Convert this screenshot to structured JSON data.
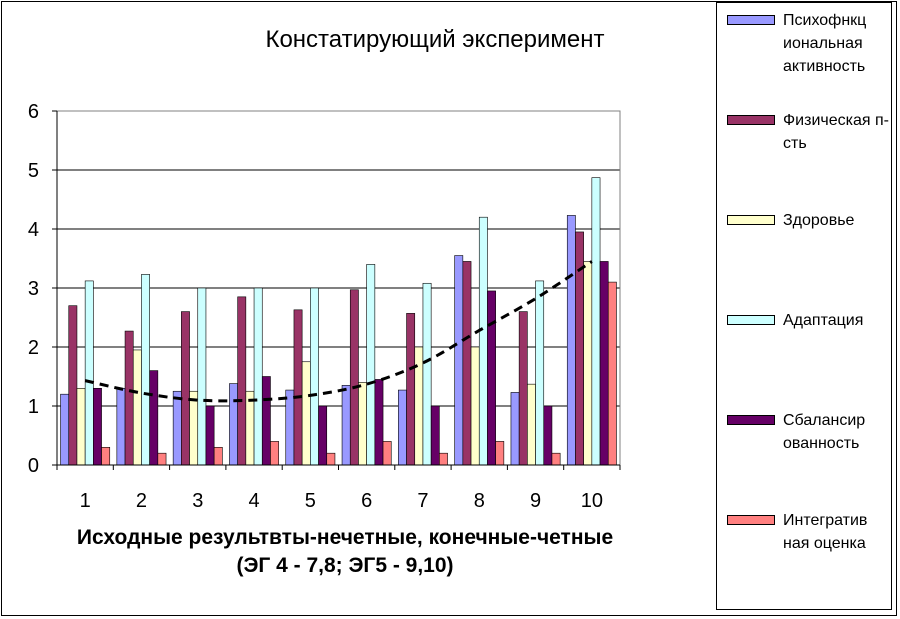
{
  "chart_data": {
    "type": "bar",
    "title": "Констатирующий эксперимент",
    "xlabel_line1": "Исходные результвты-нечетные,  конечные-четные",
    "xlabel_line2": "(ЭГ 4 - 7,8;  ЭГ5 - 9,10)",
    "ylabel": "",
    "ylim": [
      0,
      6
    ],
    "yticks": [
      "0",
      "1",
      "2",
      "3",
      "4",
      "5",
      "6"
    ],
    "categories": [
      "1",
      "2",
      "3",
      "4",
      "5",
      "6",
      "7",
      "8",
      "9",
      "10"
    ],
    "grid": true,
    "legend_position": "right",
    "series": [
      {
        "name": "Психофнкц иональная активность",
        "color": "#9999ff",
        "values": [
          1.2,
          1.3,
          1.25,
          1.38,
          1.27,
          1.35,
          1.27,
          3.55,
          1.23,
          4.23
        ]
      },
      {
        "name": "Физическая п-сть",
        "color": "#993366",
        "values": [
          2.7,
          2.27,
          2.6,
          2.85,
          2.63,
          2.97,
          2.57,
          3.45,
          2.6,
          3.95
        ]
      },
      {
        "name": "Здоровье",
        "color": "#ffffcc",
        "values": [
          1.3,
          1.95,
          1.25,
          1.25,
          1.75,
          1.4,
          2.0,
          2.0,
          1.37,
          3.45
        ]
      },
      {
        "name": "Адаптация",
        "color": "#ccffff",
        "values": [
          3.12,
          3.23,
          3.0,
          3.0,
          3.0,
          3.4,
          3.08,
          4.2,
          3.12,
          4.87
        ]
      },
      {
        "name": "Сбалансир ованность",
        "color": "#660066",
        "values": [
          1.3,
          1.6,
          1.0,
          1.5,
          1.0,
          1.45,
          1.0,
          2.95,
          1.0,
          3.45
        ]
      },
      {
        "name": "Интегратив ная оценка",
        "color": "#ff8080",
        "values": [
          0.3,
          0.2,
          0.3,
          0.4,
          0.2,
          0.4,
          0.2,
          0.4,
          0.2,
          3.1
        ]
      }
    ],
    "trendline": {
      "style": "dashed",
      "color": "#000000",
      "values": [
        1.43,
        1.22,
        1.1,
        1.1,
        1.18,
        1.37,
        1.73,
        2.28,
        2.82,
        3.45
      ]
    }
  }
}
